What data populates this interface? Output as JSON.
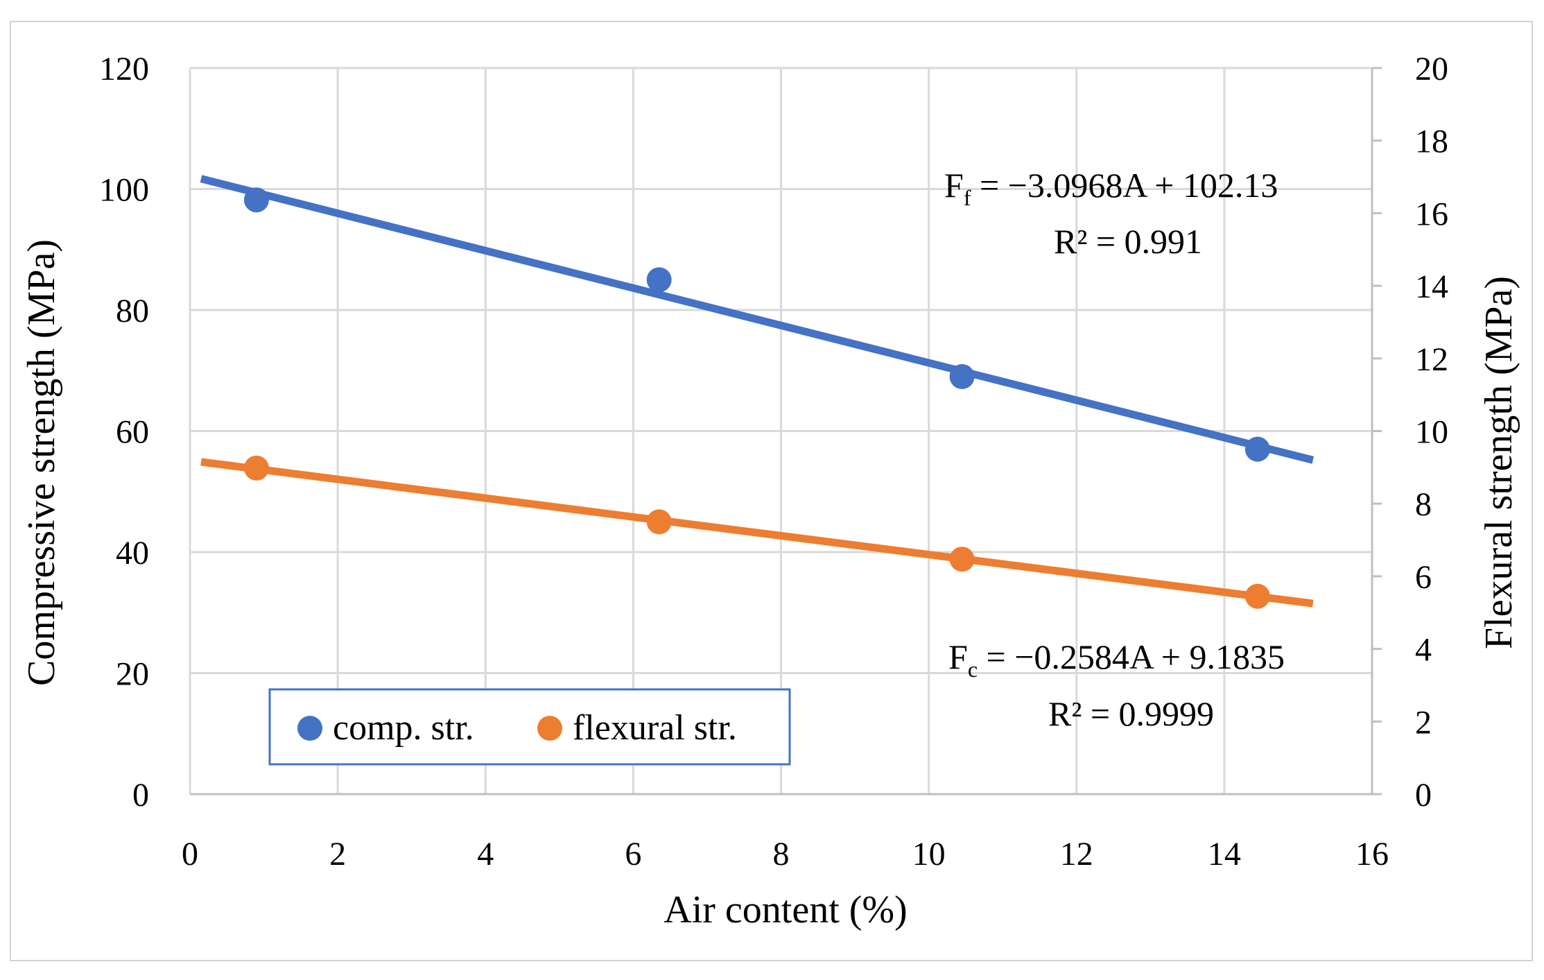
{
  "chart_data": {
    "type": "scatter",
    "title": "",
    "xlabel": "Air content (%)",
    "ylabel": "Compressive strength (MPa)",
    "y2label": "Flexural strength (MPa)",
    "xlim": [
      0,
      16
    ],
    "ylim": [
      0,
      120
    ],
    "y2lim": [
      0,
      20
    ],
    "x_ticks": [
      "0",
      "2",
      "4",
      "6",
      "8",
      "10",
      "12",
      "14",
      "16"
    ],
    "y_ticks": [
      "0",
      "20",
      "40",
      "60",
      "80",
      "100",
      "120"
    ],
    "y2_ticks": [
      "0",
      "2",
      "4",
      "6",
      "8",
      "10",
      "12",
      "14",
      "16",
      "18",
      "20"
    ],
    "grid": true,
    "legend_position": "bottom-left",
    "series": [
      {
        "name": "comp. str.",
        "axis": "left",
        "color": "#4472c4",
        "x": [
          0.9,
          6.35,
          10.45,
          14.45
        ],
        "y": [
          98.2,
          85.0,
          69.0,
          57.0
        ],
        "trendline": {
          "x": [
            0.15,
            15.2
          ],
          "y": [
            101.7,
            55.2
          ]
        }
      },
      {
        "name": "flexural str.",
        "axis": "right",
        "color": "#ed7d31",
        "x": [
          0.9,
          6.35,
          10.45,
          14.45
        ],
        "y": [
          8.98,
          7.5,
          6.47,
          5.45
        ],
        "trendline": {
          "x": [
            0.15,
            15.2
          ],
          "y": [
            9.15,
            5.25
          ]
        }
      }
    ],
    "annotations": [
      {
        "main": "F",
        "sub": "f",
        "rest": " = −3.0968A + 102.13",
        "r2": "R² = 0.991"
      },
      {
        "main": "F",
        "sub": "c",
        "rest": " = −0.2584A + 9.1835",
        "r2": "R² = 0.9999"
      }
    ]
  }
}
